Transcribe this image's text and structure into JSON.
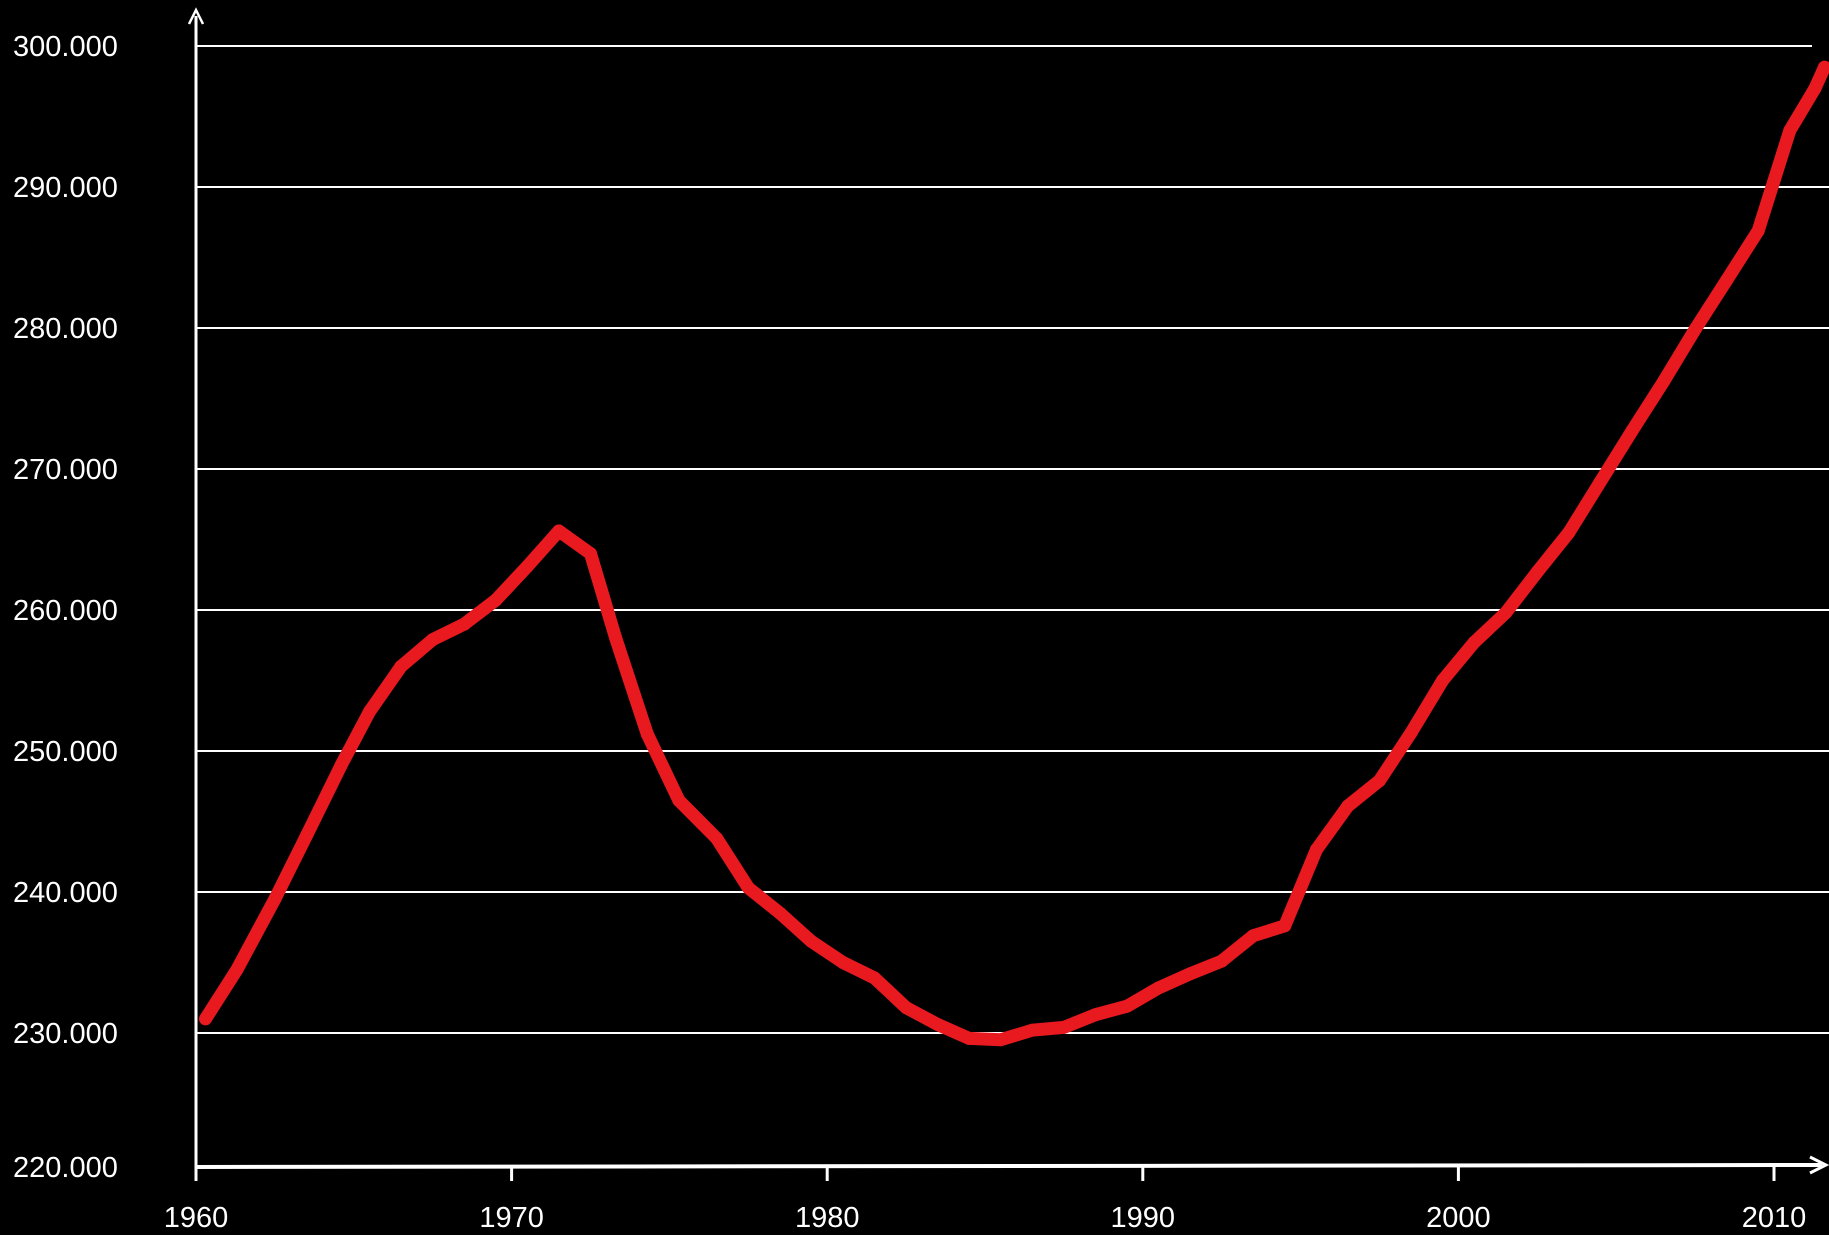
{
  "chart_data": {
    "type": "line",
    "title": "",
    "xlabel": "",
    "ylabel": "",
    "xlim": [
      1960,
      2011.6
    ],
    "ylim": [
      220000,
      300000
    ],
    "grid": true,
    "colors": {
      "background": "#000000",
      "axis": "#ffffff",
      "gridline": "#ffffff",
      "line": "#e8191f"
    },
    "x_ticks": [
      1960,
      1970,
      1980,
      1990,
      2000,
      2010
    ],
    "x_tick_labels": [
      "1960",
      "1970",
      "1980",
      "1990",
      "2000",
      "2010"
    ],
    "y_ticks": [
      220000,
      230000,
      240000,
      250000,
      260000,
      270000,
      280000,
      290000,
      300000
    ],
    "y_tick_labels": [
      "220.000",
      "230.000",
      "240.000",
      "250.000",
      "260.000",
      "270.000",
      "280.000",
      "290.000",
      "300.000"
    ],
    "series": [
      {
        "x": [
          1960.3,
          1961.3,
          1962.5,
          1963.5,
          1964.6,
          1965.5,
          1966.5,
          1967.5,
          1968.5,
          1969.5,
          1970.5,
          1971.5,
          1972.5,
          1973.3,
          1974.3,
          1975.3,
          1976.5,
          1977.5,
          1978.5,
          1979.5,
          1980.5,
          1981.5,
          1982.5,
          1983.5,
          1984.5,
          1985.5,
          1986.5,
          1987.5,
          1988.5,
          1989.5,
          1990.5,
          1991.5,
          1992.5,
          1993.5,
          1994.5,
          1995.5,
          1996.5,
          1997.5,
          1998.5,
          1999.5,
          2000.5,
          2001.5,
          2002.5,
          2003.5,
          2004.5,
          2005.5,
          2006.5,
          2007.5,
          2008.5,
          2009.5,
          2010.5,
          2011.3,
          2011.6
        ],
        "values": [
          231000,
          234500,
          239500,
          244000,
          249000,
          252800,
          256000,
          257900,
          259000,
          260700,
          263100,
          265600,
          264000,
          258000,
          251200,
          246500,
          243800,
          240300,
          238500,
          236500,
          235000,
          233900,
          231800,
          230600,
          229600,
          229500,
          230200,
          230400,
          231300,
          231900,
          233200,
          234200,
          235100,
          236900,
          237600,
          243000,
          246100,
          247900,
          251300,
          255000,
          257700,
          259800,
          262700,
          265500,
          269100,
          272700,
          276200,
          279900,
          283400,
          286900,
          294000,
          297000,
          298500
        ]
      }
    ]
  }
}
